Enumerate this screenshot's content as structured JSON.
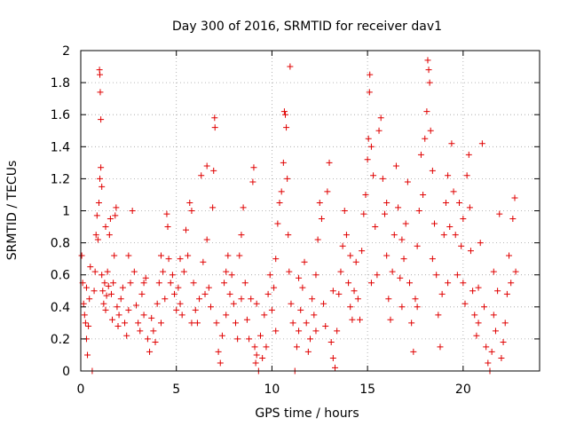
{
  "chart_data": {
    "type": "scatter",
    "title": "Day 300 of 2016, SRMTID for receiver dav1",
    "xlabel": "GPS time / hours",
    "ylabel": "SRMTID / TECUs",
    "xlim": [
      0,
      24
    ],
    "ylim": [
      0,
      2
    ],
    "x_ticks": [
      0,
      5,
      10,
      15,
      20
    ],
    "x_tick_labels": [
      "0",
      "5",
      "10",
      "15",
      "20"
    ],
    "y_ticks": [
      0,
      0.2,
      0.4,
      0.6,
      0.8,
      1,
      1.2,
      1.4,
      1.6,
      1.8,
      2
    ],
    "y_tick_labels": [
      "0",
      "0.2",
      "0.4",
      "0.6",
      "0.8",
      "1",
      "1.2",
      "1.4",
      "1.6",
      "1.8",
      "2"
    ],
    "grid": true,
    "marker": "+",
    "series": [
      {
        "name": "dav1",
        "color": "#e00000",
        "points": [
          [
            0.05,
            0.72
          ],
          [
            0.1,
            0.55
          ],
          [
            0.15,
            0.42
          ],
          [
            0.2,
            0.35
          ],
          [
            0.25,
            0.3
          ],
          [
            0.3,
            0.2
          ],
          [
            0.35,
            0.1
          ],
          [
            0.4,
            0.28
          ],
          [
            0.45,
            0.45
          ],
          [
            0.5,
            0.65
          ],
          [
            0.6,
            0.0
          ],
          [
            0.7,
            0.5
          ],
          [
            0.75,
            0.62
          ],
          [
            0.8,
            0.85
          ],
          [
            0.85,
            0.97
          ],
          [
            0.9,
            0.82
          ],
          [
            0.95,
            1.05
          ],
          [
            1.0,
            1.2
          ],
          [
            1.05,
            1.27
          ],
          [
            1.1,
            1.15
          ],
          [
            0.98,
            1.88
          ],
          [
            1.0,
            1.85
          ],
          [
            1.02,
            1.74
          ],
          [
            1.05,
            1.57
          ],
          [
            1.1,
            0.6
          ],
          [
            1.15,
            0.5
          ],
          [
            1.2,
            0.42
          ],
          [
            1.25,
            0.55
          ],
          [
            1.3,
            0.38
          ],
          [
            1.35,
            0.47
          ],
          [
            1.4,
            0.62
          ],
          [
            1.45,
            0.53
          ],
          [
            1.5,
            0.85
          ],
          [
            1.55,
            0.95
          ],
          [
            1.6,
            0.48
          ],
          [
            1.65,
            0.32
          ],
          [
            1.7,
            0.55
          ],
          [
            1.75,
            0.72
          ],
          [
            1.8,
            0.97
          ],
          [
            1.85,
            1.02
          ],
          [
            1.9,
            0.4
          ],
          [
            1.95,
            0.28
          ],
          [
            2.0,
            0.35
          ],
          [
            2.1,
            0.45
          ],
          [
            2.2,
            0.52
          ],
          [
            2.3,
            0.3
          ],
          [
            2.4,
            0.22
          ],
          [
            2.5,
            0.38
          ],
          [
            2.6,
            0.55
          ],
          [
            2.7,
            1.0
          ],
          [
            2.8,
            0.62
          ],
          [
            2.9,
            0.41
          ],
          [
            3.0,
            0.3
          ],
          [
            3.1,
            0.25
          ],
          [
            3.2,
            0.48
          ],
          [
            3.3,
            0.35
          ],
          [
            3.4,
            0.58
          ],
          [
            3.5,
            0.2
          ],
          [
            3.6,
            0.12
          ],
          [
            3.7,
            0.33
          ],
          [
            3.8,
            0.25
          ],
          [
            3.9,
            0.18
          ],
          [
            4.0,
            0.42
          ],
          [
            4.1,
            0.55
          ],
          [
            4.2,
            0.72
          ],
          [
            4.3,
            0.62
          ],
          [
            4.4,
            0.45
          ],
          [
            4.5,
            0.98
          ],
          [
            4.55,
            0.9
          ],
          [
            4.6,
            0.7
          ],
          [
            4.7,
            0.55
          ],
          [
            4.8,
            0.6
          ],
          [
            4.9,
            0.48
          ],
          [
            5.0,
            0.38
          ],
          [
            5.1,
            0.52
          ],
          [
            5.2,
            0.42
          ],
          [
            5.3,
            0.35
          ],
          [
            5.4,
            0.62
          ],
          [
            5.5,
            0.88
          ],
          [
            5.6,
            0.72
          ],
          [
            5.7,
            1.05
          ],
          [
            5.8,
            1.0
          ],
          [
            5.9,
            0.55
          ],
          [
            6.0,
            0.38
          ],
          [
            6.1,
            0.3
          ],
          [
            6.2,
            0.45
          ],
          [
            6.3,
            1.22
          ],
          [
            6.4,
            0.68
          ],
          [
            6.5,
            0.48
          ],
          [
            6.6,
            1.28
          ],
          [
            6.7,
            0.52
          ],
          [
            6.8,
            0.4
          ],
          [
            6.9,
            1.02
          ],
          [
            6.95,
            1.25
          ],
          [
            7.0,
            1.58
          ],
          [
            7.02,
            1.52
          ],
          [
            7.1,
            0.3
          ],
          [
            7.2,
            0.12
          ],
          [
            7.3,
            0.05
          ],
          [
            7.4,
            0.22
          ],
          [
            7.5,
            0.55
          ],
          [
            7.6,
            0.35
          ],
          [
            7.7,
            0.72
          ],
          [
            7.8,
            0.48
          ],
          [
            7.9,
            0.6
          ],
          [
            8.0,
            0.42
          ],
          [
            8.1,
            0.3
          ],
          [
            8.2,
            0.2
          ],
          [
            8.3,
            0.72
          ],
          [
            8.4,
            0.45
          ],
          [
            8.5,
            1.02
          ],
          [
            8.6,
            0.55
          ],
          [
            8.7,
            0.32
          ],
          [
            8.8,
            0.2
          ],
          [
            8.9,
            0.45
          ],
          [
            9.0,
            1.18
          ],
          [
            9.05,
            1.27
          ],
          [
            9.1,
            0.15
          ],
          [
            9.15,
            0.05
          ],
          [
            9.2,
            0.1
          ],
          [
            9.3,
            0.0
          ],
          [
            9.4,
            0.22
          ],
          [
            9.5,
            0.08
          ],
          [
            9.6,
            0.35
          ],
          [
            9.7,
            0.15
          ],
          [
            9.8,
            0.48
          ],
          [
            9.9,
            0.6
          ],
          [
            10.0,
            0.38
          ],
          [
            10.1,
            0.52
          ],
          [
            10.2,
            0.7
          ],
          [
            10.3,
            0.92
          ],
          [
            10.4,
            1.05
          ],
          [
            10.5,
            1.12
          ],
          [
            10.6,
            1.3
          ],
          [
            10.65,
            1.62
          ],
          [
            10.7,
            1.6
          ],
          [
            10.75,
            1.52
          ],
          [
            10.8,
            1.2
          ],
          [
            10.85,
            0.85
          ],
          [
            10.9,
            0.62
          ],
          [
            10.95,
            1.9
          ],
          [
            11.0,
            0.42
          ],
          [
            11.1,
            0.3
          ],
          [
            11.2,
            0.0
          ],
          [
            11.3,
            0.15
          ],
          [
            11.4,
            0.25
          ],
          [
            11.5,
            0.38
          ],
          [
            11.6,
            0.52
          ],
          [
            11.7,
            0.68
          ],
          [
            11.8,
            0.3
          ],
          [
            11.9,
            0.12
          ],
          [
            12.0,
            0.2
          ],
          [
            12.1,
            0.45
          ],
          [
            12.2,
            0.35
          ],
          [
            12.3,
            0.6
          ],
          [
            12.4,
            0.82
          ],
          [
            12.5,
            1.05
          ],
          [
            12.6,
            0.95
          ],
          [
            12.7,
            0.42
          ],
          [
            12.8,
            0.28
          ],
          [
            12.9,
            1.12
          ],
          [
            13.0,
            1.3
          ],
          [
            13.1,
            0.18
          ],
          [
            13.2,
            0.08
          ],
          [
            13.3,
            0.02
          ],
          [
            13.4,
            0.25
          ],
          [
            13.5,
            0.48
          ],
          [
            13.6,
            0.62
          ],
          [
            13.7,
            0.78
          ],
          [
            13.8,
            1.0
          ],
          [
            13.9,
            0.85
          ],
          [
            14.0,
            0.55
          ],
          [
            14.1,
            0.4
          ],
          [
            14.2,
            0.32
          ],
          [
            14.3,
            0.5
          ],
          [
            14.4,
            0.68
          ],
          [
            14.5,
            0.45
          ],
          [
            14.6,
            0.32
          ],
          [
            14.7,
            0.75
          ],
          [
            14.8,
            0.98
          ],
          [
            14.9,
            1.1
          ],
          [
            15.0,
            1.32
          ],
          [
            15.05,
            1.45
          ],
          [
            15.1,
            1.74
          ],
          [
            15.12,
            1.85
          ],
          [
            15.2,
            1.4
          ],
          [
            15.3,
            1.22
          ],
          [
            15.4,
            0.9
          ],
          [
            15.5,
            0.6
          ],
          [
            15.6,
            1.5
          ],
          [
            15.7,
            1.58
          ],
          [
            15.8,
            1.2
          ],
          [
            15.9,
            0.98
          ],
          [
            16.0,
            0.72
          ],
          [
            16.1,
            0.45
          ],
          [
            16.2,
            0.32
          ],
          [
            16.3,
            0.62
          ],
          [
            16.4,
            0.85
          ],
          [
            16.5,
            1.28
          ],
          [
            16.6,
            1.02
          ],
          [
            16.7,
            0.58
          ],
          [
            16.8,
            0.4
          ],
          [
            16.9,
            0.7
          ],
          [
            17.0,
            0.92
          ],
          [
            17.1,
            1.18
          ],
          [
            17.2,
            0.55
          ],
          [
            17.3,
            0.3
          ],
          [
            17.4,
            0.12
          ],
          [
            17.5,
            0.45
          ],
          [
            17.6,
            0.78
          ],
          [
            17.7,
            1.0
          ],
          [
            17.8,
            1.35
          ],
          [
            17.9,
            1.1
          ],
          [
            18.0,
            1.45
          ],
          [
            18.1,
            1.62
          ],
          [
            18.15,
            1.94
          ],
          [
            18.2,
            1.88
          ],
          [
            18.25,
            1.8
          ],
          [
            18.3,
            1.5
          ],
          [
            18.4,
            1.25
          ],
          [
            18.5,
            0.92
          ],
          [
            18.6,
            0.6
          ],
          [
            18.7,
            0.35
          ],
          [
            18.8,
            0.15
          ],
          [
            18.9,
            0.48
          ],
          [
            19.0,
            0.85
          ],
          [
            19.1,
            1.05
          ],
          [
            19.2,
            1.22
          ],
          [
            19.3,
            0.9
          ],
          [
            19.4,
            1.42
          ],
          [
            19.5,
            1.12
          ],
          [
            19.6,
            0.85
          ],
          [
            19.7,
            0.6
          ],
          [
            19.8,
            1.05
          ],
          [
            19.9,
            0.78
          ],
          [
            20.0,
            0.55
          ],
          [
            20.1,
            0.42
          ],
          [
            20.2,
            1.22
          ],
          [
            20.3,
            1.35
          ],
          [
            20.35,
            1.02
          ],
          [
            20.4,
            0.75
          ],
          [
            20.5,
            0.5
          ],
          [
            20.6,
            0.35
          ],
          [
            20.7,
            0.22
          ],
          [
            20.8,
            0.52
          ],
          [
            20.9,
            0.8
          ],
          [
            21.0,
            1.42
          ],
          [
            21.1,
            0.4
          ],
          [
            21.2,
            0.15
          ],
          [
            21.3,
            0.05
          ],
          [
            21.4,
            0.0
          ],
          [
            21.5,
            0.12
          ],
          [
            21.6,
            0.35
          ],
          [
            21.7,
            0.25
          ],
          [
            21.8,
            0.5
          ],
          [
            21.9,
            0.98
          ],
          [
            22.0,
            0.08
          ],
          [
            22.1,
            0.18
          ],
          [
            22.2,
            0.3
          ],
          [
            22.3,
            0.48
          ],
          [
            22.4,
            0.72
          ],
          [
            22.5,
            0.55
          ],
          [
            22.6,
            0.95
          ],
          [
            22.7,
            1.08
          ],
          [
            22.75,
            0.62
          ],
          [
            0.3,
            0.52
          ],
          [
            1.3,
            0.9
          ],
          [
            2.5,
            0.72
          ],
          [
            3.3,
            0.55
          ],
          [
            4.2,
            0.3
          ],
          [
            5.2,
            0.7
          ],
          [
            5.8,
            0.3
          ],
          [
            6.6,
            0.82
          ],
          [
            7.6,
            0.62
          ],
          [
            8.4,
            0.85
          ],
          [
            9.2,
            0.42
          ],
          [
            10.2,
            0.25
          ],
          [
            11.4,
            0.58
          ],
          [
            12.3,
            0.25
          ],
          [
            13.2,
            0.5
          ],
          [
            14.1,
            0.72
          ],
          [
            15.2,
            0.55
          ],
          [
            16.0,
            1.05
          ],
          [
            16.8,
            0.82
          ],
          [
            17.6,
            0.4
          ],
          [
            18.4,
            0.7
          ],
          [
            19.2,
            0.55
          ],
          [
            20.0,
            0.95
          ],
          [
            20.8,
            0.3
          ],
          [
            21.6,
            0.62
          ]
        ]
      }
    ]
  }
}
